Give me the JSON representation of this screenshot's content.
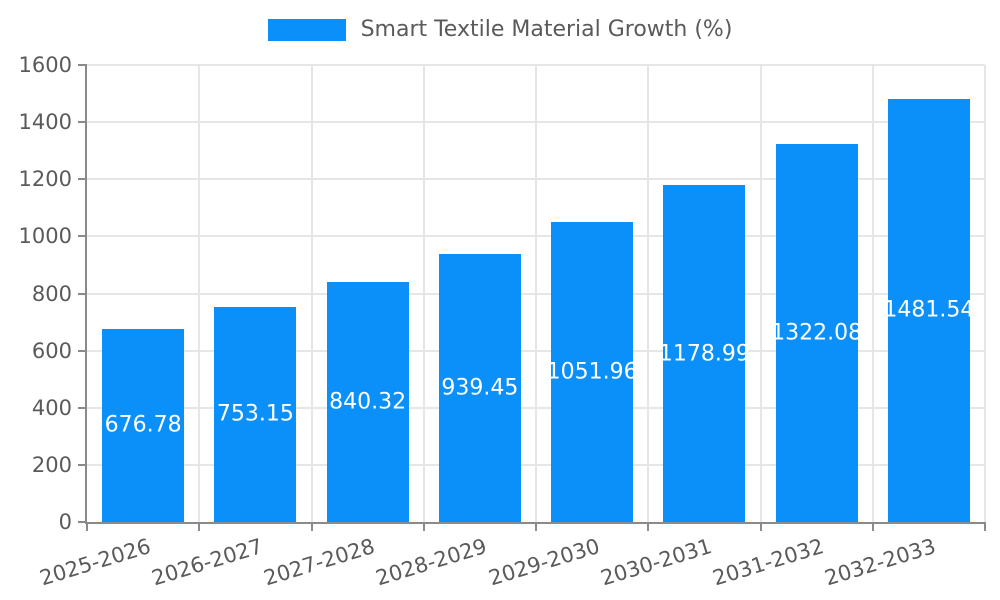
{
  "chart_data": {
    "type": "bar",
    "title": "Smart Textile Material Growth (%)",
    "categories": [
      "2025-2026",
      "2026-2027",
      "2027-2028",
      "2028-2029",
      "2029-2030",
      "2030-2031",
      "2031-2032",
      "2032-2033"
    ],
    "values": [
      676.78,
      753.15,
      840.32,
      939.45,
      1051.96,
      1178.99,
      1322.08,
      1481.54
    ],
    "value_labels": [
      "676.78",
      "753.15",
      "840.32",
      "939.45",
      "1051.96",
      "1178.99",
      "1322.08",
      "1481.54"
    ],
    "xlabel": "",
    "ylabel": "",
    "ylim": [
      0,
      1600
    ],
    "yticks": [
      0,
      200,
      400,
      600,
      800,
      1000,
      1200,
      1400,
      1600
    ],
    "grid": true,
    "legend_position": "top-center",
    "xtick_rotation_deg": -17
  },
  "colors": {
    "bar": "#0b8ff9",
    "grid": "#e6e6e6",
    "spine": "#8a8a8a",
    "tick_text": "#5a5a5a",
    "value_label": "#ffffff",
    "background": "#ffffff"
  }
}
